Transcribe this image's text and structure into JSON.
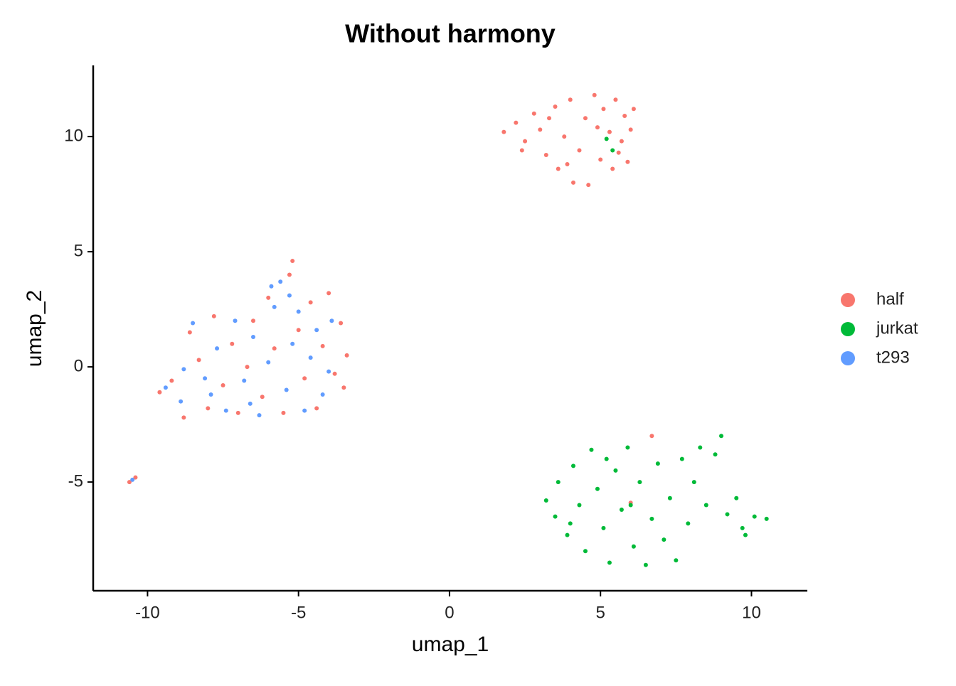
{
  "chart_data": {
    "type": "scatter",
    "title": "Without harmony",
    "x_label": "umap_1",
    "y_label": "umap_2",
    "xlim": [
      -11.8,
      11.85
    ],
    "ylim": [
      -9.72,
      13.09
    ],
    "xticks": [
      -10,
      -5,
      0,
      5,
      10
    ],
    "yticks": [
      -5,
      0,
      5,
      10
    ],
    "grid": false,
    "legend": "right",
    "series": [
      {
        "name": "half",
        "color": "#F8766D",
        "x": [
          1.8,
          2.2,
          2.5,
          2.8,
          3.0,
          3.2,
          3.5,
          3.6,
          3.8,
          4.0,
          4.1,
          4.3,
          4.5,
          4.6,
          4.8,
          5.0,
          5.1,
          5.3,
          5.4,
          5.5,
          5.7,
          5.8,
          5.9,
          6.0,
          6.1,
          2.4,
          3.3,
          4.9,
          5.6,
          3.9,
          -9.6,
          -9.2,
          -8.8,
          -8.6,
          -8.3,
          -8.0,
          -7.8,
          -7.5,
          -7.2,
          -7.0,
          -6.7,
          -6.5,
          -6.2,
          -6.0,
          -5.8,
          -5.5,
          -5.3,
          -5.0,
          -4.8,
          -4.6,
          -4.4,
          -4.2,
          -4.0,
          -3.8,
          -3.6,
          -3.4,
          -3.5,
          -5.2,
          -10.6,
          -10.4,
          6.7,
          6.0
        ],
        "y": [
          10.2,
          10.6,
          9.8,
          11.0,
          10.3,
          9.2,
          11.3,
          8.6,
          10.0,
          11.6,
          8.0,
          9.4,
          10.8,
          7.9,
          11.8,
          9.0,
          11.2,
          10.2,
          8.6,
          11.6,
          9.8,
          10.9,
          8.9,
          10.3,
          11.2,
          9.4,
          10.8,
          10.4,
          9.3,
          8.8,
          -1.1,
          -0.6,
          -2.2,
          1.5,
          0.3,
          -1.8,
          2.2,
          -0.8,
          1.0,
          -2.0,
          0.0,
          2.0,
          -1.3,
          3.0,
          0.8,
          -2.0,
          4.0,
          1.6,
          -0.5,
          2.8,
          -1.8,
          0.9,
          3.2,
          -0.3,
          1.9,
          0.5,
          -0.9,
          4.6,
          -5.0,
          -4.8,
          -3.0,
          -5.9
        ]
      },
      {
        "name": "jurkat",
        "color": "#00BA38",
        "x": [
          3.2,
          3.5,
          3.6,
          3.9,
          4.1,
          4.3,
          4.5,
          4.7,
          4.9,
          5.1,
          5.3,
          5.5,
          5.7,
          5.9,
          6.1,
          6.3,
          6.5,
          6.7,
          6.9,
          7.1,
          7.3,
          7.5,
          7.7,
          7.9,
          8.1,
          8.3,
          8.5,
          8.8,
          9.0,
          9.2,
          9.5,
          9.8,
          10.1,
          10.5,
          9.7,
          4.0,
          6.0,
          5.2,
          5.2,
          5.4
        ],
        "y": [
          -5.8,
          -6.5,
          -5.0,
          -7.3,
          -4.3,
          -6.0,
          -8.0,
          -3.6,
          -5.3,
          -7.0,
          -8.5,
          -4.5,
          -6.2,
          -3.5,
          -7.8,
          -5.0,
          -8.6,
          -6.6,
          -4.2,
          -7.5,
          -5.7,
          -8.4,
          -4.0,
          -6.8,
          -5.0,
          -3.5,
          -6.0,
          -3.8,
          -3.0,
          -6.4,
          -5.7,
          -7.3,
          -6.5,
          -6.6,
          -7.0,
          -6.8,
          -6.0,
          -4.0,
          9.9,
          9.4
        ]
      },
      {
        "name": "t293",
        "color": "#619CFF",
        "x": [
          -9.4,
          -8.9,
          -8.5,
          -8.1,
          -7.7,
          -7.4,
          -7.1,
          -6.8,
          -6.5,
          -6.3,
          -6.0,
          -5.8,
          -5.6,
          -5.4,
          -5.2,
          -5.0,
          -4.8,
          -4.6,
          -4.4,
          -4.2,
          -4.0,
          -3.9,
          -5.9,
          -8.8,
          -10.5,
          -6.6,
          -7.9,
          -5.3
        ],
        "y": [
          -0.9,
          -1.5,
          1.9,
          -0.5,
          0.8,
          -1.9,
          2.0,
          -0.6,
          1.3,
          -2.1,
          0.2,
          2.6,
          3.7,
          -1.0,
          1.0,
          2.4,
          -1.9,
          0.4,
          1.6,
          -1.2,
          -0.2,
          2.0,
          3.5,
          -0.1,
          -4.9,
          -1.6,
          -1.2,
          3.1
        ]
      }
    ]
  }
}
